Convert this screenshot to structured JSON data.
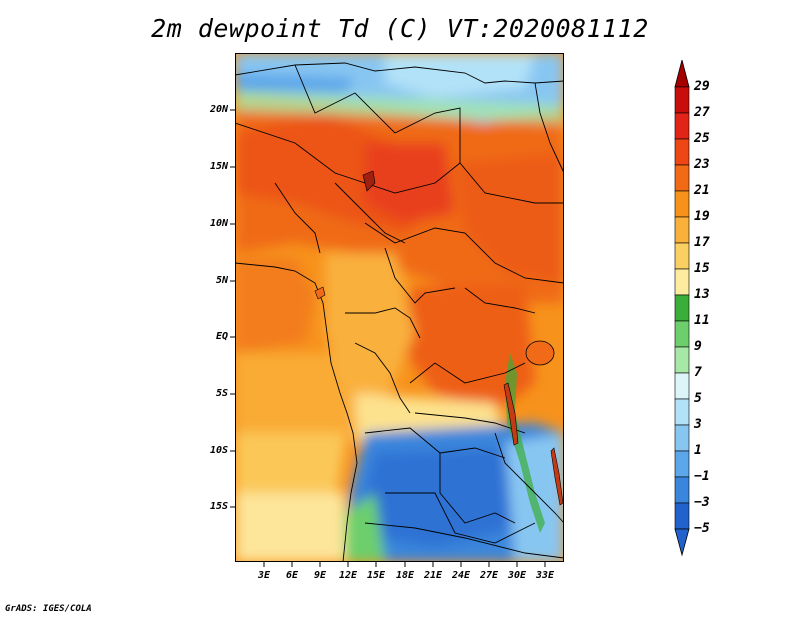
{
  "title": "2m dewpoint Td (C) VT:2020081112",
  "credit": "GrADS: IGES/COLA",
  "map": {
    "lat_labels": [
      "20N",
      "15N",
      "10N",
      "5N",
      "EQ",
      "5S",
      "10S",
      "15S"
    ],
    "lon_labels": [
      "3E",
      "6E",
      "9E",
      "12E",
      "15E",
      "18E",
      "21E",
      "24E",
      "27E",
      "30E",
      "33E"
    ]
  },
  "colorbar": {
    "labels": [
      "29",
      "27",
      "25",
      "23",
      "21",
      "19",
      "17",
      "15",
      "13",
      "11",
      "9",
      "7",
      "5",
      "3",
      "1",
      "−1",
      "−3",
      "−5"
    ],
    "colors": [
      "#a50000",
      "#c80e0a",
      "#e22418",
      "#ee4615",
      "#f26a16",
      "#f7911a",
      "#f9b13b",
      "#fbd063",
      "#fdeba0",
      "#3aad3a",
      "#6ccf6c",
      "#a6e8a6",
      "#dcf5f8",
      "#b2e2f8",
      "#88c6f2",
      "#5ca6ea",
      "#3a86dc",
      "#2262cc"
    ]
  }
}
